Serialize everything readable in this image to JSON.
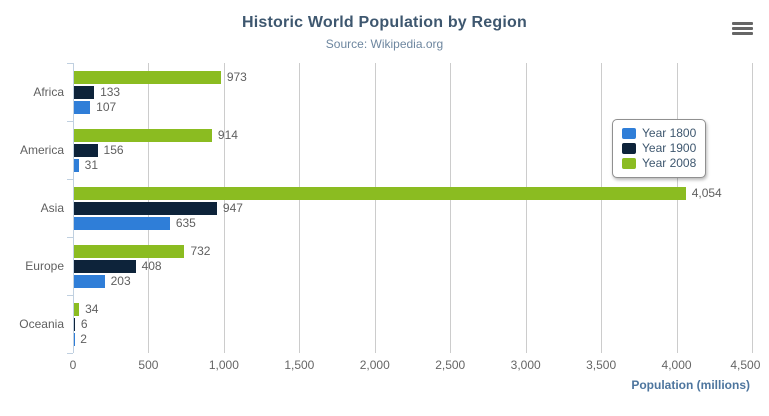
{
  "chart": {
    "title": "Historic World Population by Region",
    "subtitle": "Source: Wikipedia.org",
    "x_axis_title": "Population (millions)",
    "menu_icon": "hamburger-icon"
  },
  "chart_data": {
    "type": "bar",
    "orientation": "horizontal",
    "title": "Historic World Population by Region",
    "subtitle": "Source: Wikipedia.org",
    "xlabel": "Population (millions)",
    "categories": [
      "Africa",
      "America",
      "Asia",
      "Europe",
      "Oceania"
    ],
    "series": [
      {
        "name": "Year 1800",
        "color": "#2f7ed8",
        "values": [
          107,
          31,
          635,
          203,
          2
        ]
      },
      {
        "name": "Year 1900",
        "color": "#0d233a",
        "values": [
          133,
          156,
          947,
          408,
          6
        ]
      },
      {
        "name": "Year 2008",
        "color": "#8bbc21",
        "values": [
          973,
          914,
          4054,
          732,
          34
        ]
      }
    ],
    "bar_display_order_top_to_bottom": [
      "Year 2008",
      "Year 1900",
      "Year 1800"
    ],
    "xlim": [
      0,
      4500
    ],
    "tick_interval": 500,
    "tick_labels": [
      "0",
      "500",
      "1,000",
      "1,500",
      "2,000",
      "2,500",
      "3,000",
      "3,500",
      "4,000",
      "4,500"
    ],
    "value_labels_visible": true,
    "grid": true,
    "legend_position": "right"
  },
  "colors": {
    "title": "#3E576F",
    "subtitle": "#6D869F",
    "axis_title": "#4d759e",
    "axis_labels": "#666666",
    "category_labels": "#606060",
    "data_labels": "#606060",
    "gridline": "#cccccc",
    "category_axis_line": "#C0D0E0",
    "legend_border": "#909090",
    "legend_text": "#3E576F",
    "menu_icon": "#666666",
    "background": "#ffffff"
  }
}
